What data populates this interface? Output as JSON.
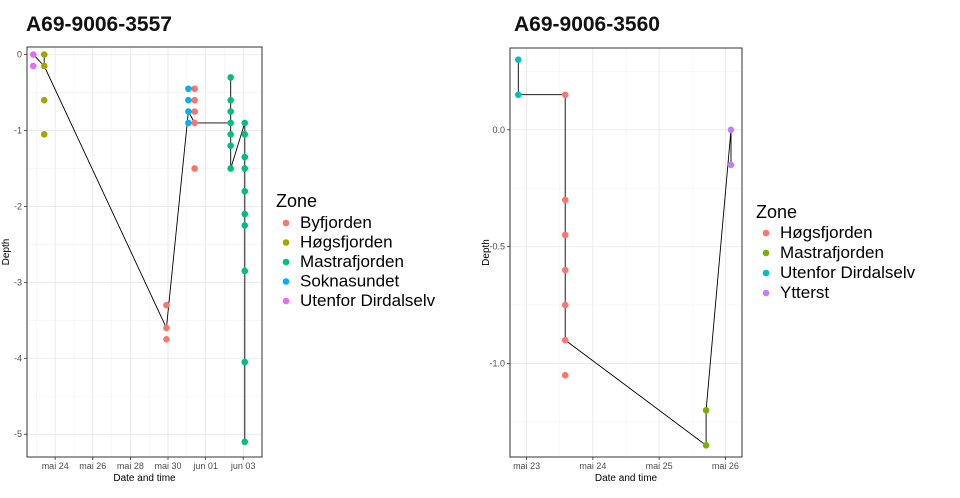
{
  "charts": [
    {
      "chart_data": {
        "type": "line",
        "title": "A69-9006-3557",
        "xlabel": "Date and time",
        "ylabel": "Depth",
        "x_ticks": [
          "mai 24",
          "mai 26",
          "mai 28",
          "mai 30",
          "jun 01",
          "jun 03"
        ],
        "xlim": [
          "2021-05-22T12:00",
          "2021-06-04T00:00"
        ],
        "ylim": [
          -5.3,
          0.1
        ],
        "y_ticks": [
          0,
          -1,
          -2,
          -3,
          -4,
          -5
        ],
        "grid": true,
        "legend": {
          "title": "Zone",
          "placement": "right"
        },
        "series": [
          {
            "name": "Byfjorden",
            "color": "#F8766D",
            "points": [
              {
                "x": "2021-05-29T22:00",
                "y": -3.3
              },
              {
                "x": "2021-05-29T22:00",
                "y": -3.6
              },
              {
                "x": "2021-05-29T22:00",
                "y": -3.75
              },
              {
                "x": "2021-05-31T10:00",
                "y": -0.45
              },
              {
                "x": "2021-05-31T10:00",
                "y": -0.6
              },
              {
                "x": "2021-05-31T10:00",
                "y": -0.75
              },
              {
                "x": "2021-05-31T10:00",
                "y": -0.9
              },
              {
                "x": "2021-05-31T10:00",
                "y": -1.5
              }
            ]
          },
          {
            "name": "Høgsfjorden",
            "color": "#A3A500",
            "points": [
              {
                "x": "2021-05-23T10:00",
                "y": 0.0
              },
              {
                "x": "2021-05-23T10:00",
                "y": -0.15
              },
              {
                "x": "2021-05-23T10:00",
                "y": -0.6
              },
              {
                "x": "2021-05-23T10:00",
                "y": -1.05
              }
            ]
          },
          {
            "name": "Mastrafjorden",
            "color": "#00BF7D",
            "points": [
              {
                "x": "2021-06-02T08:00",
                "y": -0.3
              },
              {
                "x": "2021-06-02T08:00",
                "y": -0.6
              },
              {
                "x": "2021-06-02T08:00",
                "y": -0.75
              },
              {
                "x": "2021-06-02T08:00",
                "y": -0.9
              },
              {
                "x": "2021-06-02T08:00",
                "y": -1.05
              },
              {
                "x": "2021-06-02T08:00",
                "y": -1.2
              },
              {
                "x": "2021-06-02T08:00",
                "y": -1.5
              },
              {
                "x": "2021-06-03T02:00",
                "y": -0.9
              },
              {
                "x": "2021-06-03T02:00",
                "y": -1.05
              },
              {
                "x": "2021-06-03T02:00",
                "y": -1.35
              },
              {
                "x": "2021-06-03T02:00",
                "y": -1.5
              },
              {
                "x": "2021-06-03T02:00",
                "y": -1.8
              },
              {
                "x": "2021-06-03T02:00",
                "y": -2.1
              },
              {
                "x": "2021-06-03T02:00",
                "y": -2.25
              },
              {
                "x": "2021-06-03T02:00",
                "y": -2.85
              },
              {
                "x": "2021-06-03T02:00",
                "y": -4.05
              },
              {
                "x": "2021-06-03T02:00",
                "y": -5.1
              }
            ]
          },
          {
            "name": "Soknasundet",
            "color": "#00B0F6",
            "points": [
              {
                "x": "2021-05-31T02:00",
                "y": -0.45
              },
              {
                "x": "2021-05-31T02:00",
                "y": -0.6
              },
              {
                "x": "2021-05-31T02:00",
                "y": -0.75
              },
              {
                "x": "2021-05-31T02:00",
                "y": -0.9
              }
            ]
          },
          {
            "name": "Utenfor Dirdalselv",
            "color": "#E76BF3",
            "points": [
              {
                "x": "2021-05-22T20:00",
                "y": 0.0
              },
              {
                "x": "2021-05-22T20:00",
                "y": -0.15
              }
            ]
          }
        ],
        "path": [
          {
            "x": "2021-05-22T20:00",
            "y": 0.0
          },
          {
            "x": "2021-05-23T10:00",
            "y": -0.15
          },
          {
            "x": "2021-05-23T10:00",
            "y": 0.0
          },
          {
            "x": "2021-05-23T10:00",
            "y": -0.15
          },
          {
            "x": "2021-05-29T22:00",
            "y": -3.6
          },
          {
            "x": "2021-05-31T02:00",
            "y": -0.75
          },
          {
            "x": "2021-05-31T10:00",
            "y": -0.9
          },
          {
            "x": "2021-06-02T08:00",
            "y": -0.9
          },
          {
            "x": "2021-06-02T08:00",
            "y": -0.3
          },
          {
            "x": "2021-06-02T08:00",
            "y": -1.5
          },
          {
            "x": "2021-06-03T02:00",
            "y": -0.9
          },
          {
            "x": "2021-06-03T02:00",
            "y": -5.1
          }
        ]
      }
    },
    {
      "chart_data": {
        "type": "line",
        "title": "A69-9006-3560",
        "xlabel": "Date and time",
        "ylabel": "Depth",
        "x_ticks": [
          "mai 23",
          "mai 24",
          "mai 25",
          "mai 26"
        ],
        "xlim": [
          "2021-05-22T18:00",
          "2021-05-26T06:00"
        ],
        "ylim": [
          -1.4,
          0.35
        ],
        "y_ticks": [
          0.0,
          -0.5,
          -1.0
        ],
        "y_tick_labels": [
          "0.0",
          "-0.5",
          "-1.0"
        ],
        "grid": true,
        "legend": {
          "title": "Zone",
          "placement": "right"
        },
        "series": [
          {
            "name": "Høgsfjorden",
            "color": "#F8766D",
            "points": [
              {
                "x": "2021-05-23T14:00",
                "y": 0.15
              },
              {
                "x": "2021-05-23T14:00",
                "y": -0.3
              },
              {
                "x": "2021-05-23T14:00",
                "y": -0.45
              },
              {
                "x": "2021-05-23T14:00",
                "y": -0.6
              },
              {
                "x": "2021-05-23T14:00",
                "y": -0.75
              },
              {
                "x": "2021-05-23T14:00",
                "y": -0.9
              },
              {
                "x": "2021-05-23T14:00",
                "y": -1.05
              }
            ]
          },
          {
            "name": "Mastrafjorden",
            "color": "#7CAE00",
            "points": [
              {
                "x": "2021-05-25T17:00",
                "y": -1.2
              },
              {
                "x": "2021-05-25T17:00",
                "y": -1.35
              }
            ]
          },
          {
            "name": "Utenfor Dirdalselv",
            "color": "#00BFC4",
            "points": [
              {
                "x": "2021-05-22T21:00",
                "y": 0.3
              },
              {
                "x": "2021-05-22T21:00",
                "y": 0.15
              }
            ]
          },
          {
            "name": "Ytterst",
            "color": "#C77CFF",
            "points": [
              {
                "x": "2021-05-26T02:00",
                "y": 0.0
              },
              {
                "x": "2021-05-26T02:00",
                "y": -0.15
              }
            ]
          }
        ],
        "path": [
          {
            "x": "2021-05-22T21:00",
            "y": 0.3
          },
          {
            "x": "2021-05-22T21:00",
            "y": 0.15
          },
          {
            "x": "2021-05-23T14:00",
            "y": 0.15
          },
          {
            "x": "2021-05-23T14:00",
            "y": -0.9
          },
          {
            "x": "2021-05-25T17:00",
            "y": -1.35
          },
          {
            "x": "2021-05-25T17:00",
            "y": -1.2
          },
          {
            "x": "2021-05-26T02:00",
            "y": 0.0
          },
          {
            "x": "2021-05-26T02:00",
            "y": -0.15
          }
        ]
      }
    }
  ]
}
